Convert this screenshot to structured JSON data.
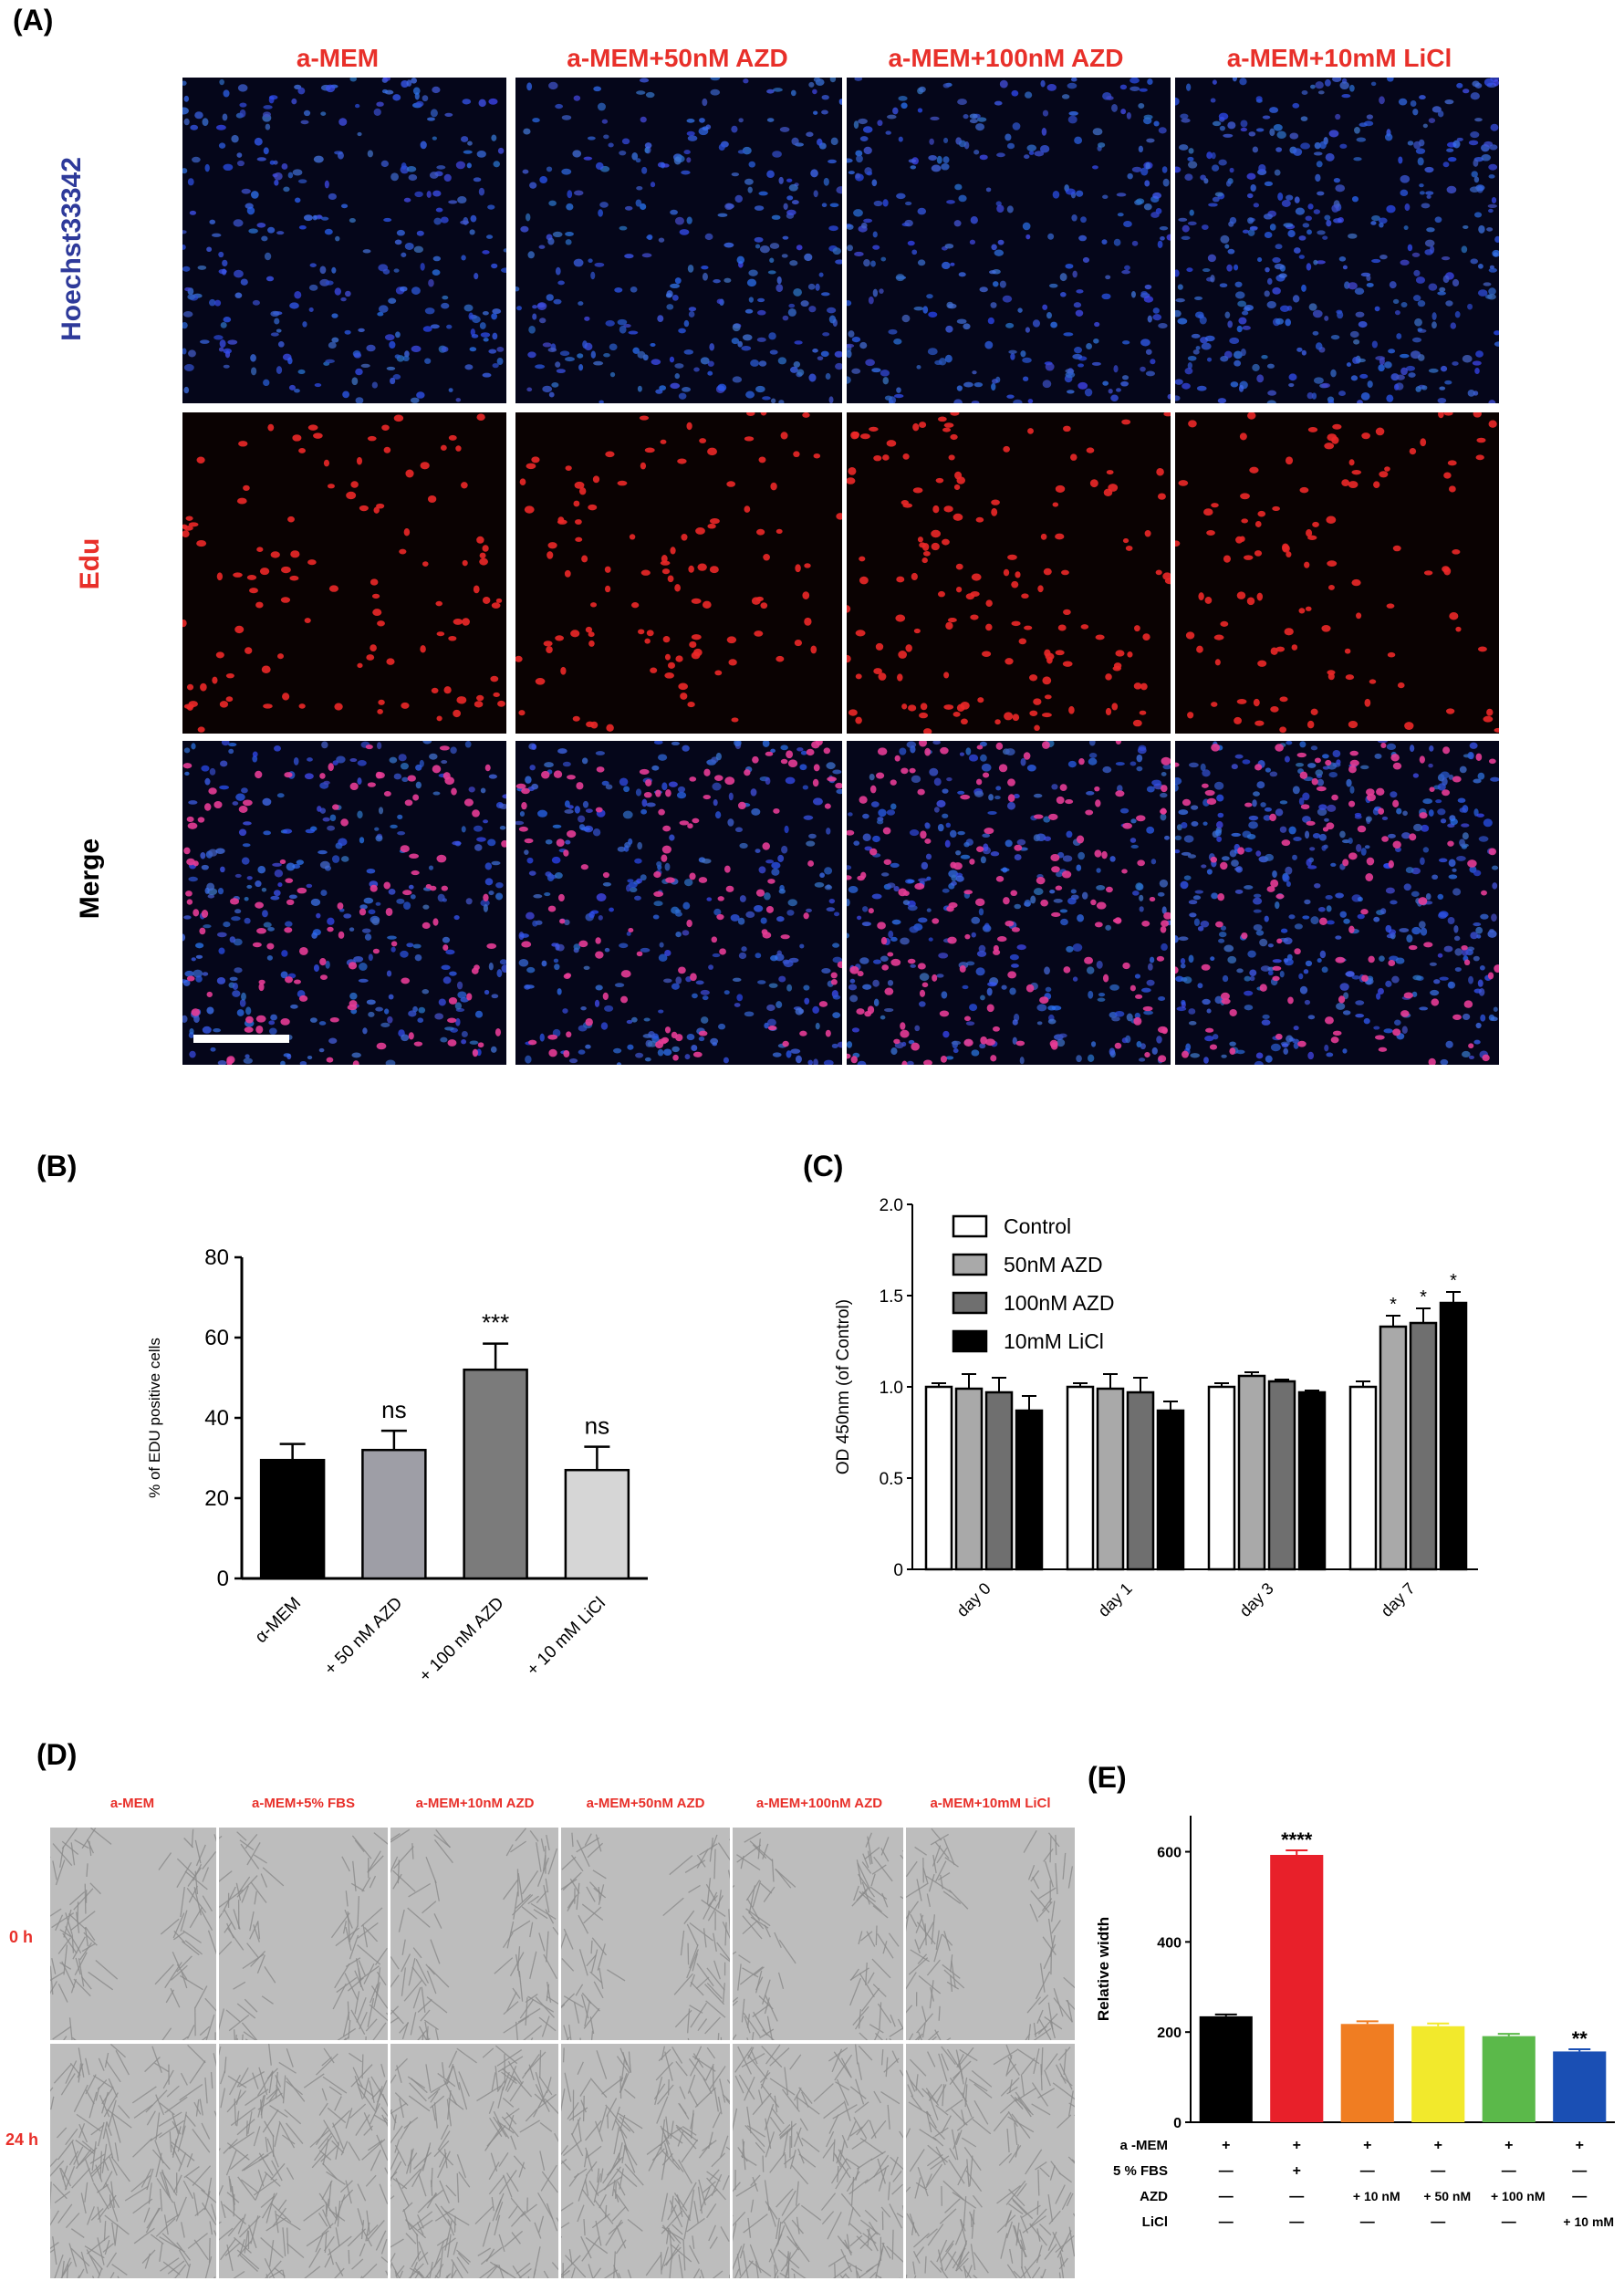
{
  "panel_letters": {
    "A": "(A)",
    "B": "(B)",
    "C": "(C)",
    "D": "(D)",
    "E": "(E)"
  },
  "panel_A": {
    "columns": [
      "a-MEM",
      "a-MEM+50nM AZD",
      "a-MEM+100nM AZD",
      "a-MEM+10mM LiCl"
    ],
    "rows": [
      {
        "label": "Hoechst33342",
        "color": "#2e3a9a"
      },
      {
        "label": "Edu",
        "color": "#e8302a"
      },
      {
        "label": "Merge",
        "color": "#000000"
      }
    ]
  },
  "panel_D": {
    "columns": [
      "a-MEM",
      "a-MEM+5% FBS",
      "a-MEM+10nM AZD",
      "a-MEM+50nM AZD",
      "a-MEM+100nM AZD",
      "a-MEM+10mM LiCl"
    ],
    "rows": [
      "0 h",
      "24 h"
    ]
  },
  "chart_data": [
    {
      "panel": "B",
      "type": "bar",
      "categories": [
        "α-MEM",
        "+ 50 nM AZD",
        "+ 100 nM AZD",
        "+ 10 mM LiCl"
      ],
      "values": [
        29.5,
        32,
        52,
        27
      ],
      "errors": [
        4,
        4.8,
        6.5,
        5.8
      ],
      "annotations": [
        "",
        "ns",
        "***",
        "ns"
      ],
      "colors": [
        "#000000",
        "#9e9ea6",
        "#7b7b7b",
        "#d6d6d6"
      ],
      "ylabel": "% of EDU positive cells",
      "ylim": [
        0,
        80
      ],
      "yticks": [
        0,
        20,
        40,
        60,
        80
      ]
    },
    {
      "panel": "C",
      "type": "bar",
      "categories": [
        "day 0",
        "day 1",
        "day 3",
        "day 7"
      ],
      "series": [
        {
          "name": "Control",
          "values": [
            1.0,
            1.0,
            1.0,
            1.0
          ],
          "errors": [
            0.02,
            0.02,
            0.02,
            0.03
          ],
          "color": "#ffffff"
        },
        {
          "name": "50nM AZD",
          "values": [
            0.99,
            0.99,
            1.06,
            1.33
          ],
          "errors": [
            0.08,
            0.08,
            0.02,
            0.06
          ],
          "color": "#a9a9a9"
        },
        {
          "name": "100nM AZD",
          "values": [
            0.97,
            0.97,
            1.03,
            1.35
          ],
          "errors": [
            0.08,
            0.08,
            0.01,
            0.08
          ],
          "color": "#6f6f6f"
        },
        {
          "name": "10mM LiCl",
          "values": [
            0.87,
            0.87,
            0.97,
            1.46
          ],
          "errors": [
            0.08,
            0.05,
            0.01,
            0.06
          ],
          "color": "#000000"
        }
      ],
      "annotations_day7": [
        "",
        "*",
        "*",
        "*"
      ],
      "ylabel": "OD 450nm (of Control)",
      "ylim": [
        0,
        2.0
      ],
      "yticks": [
        "0",
        "0.5",
        "1.0",
        "1.5",
        "2.0"
      ],
      "legend": "top-left"
    },
    {
      "panel": "E",
      "type": "bar",
      "categories": [
        "a-MEM",
        "+5% FBS",
        "+10 nM AZD",
        "+50 nM AZD",
        "+100 nM AZD",
        "+10 mM LiCl"
      ],
      "values": [
        235,
        593,
        218,
        213,
        191,
        157
      ],
      "errors": [
        4,
        10,
        6,
        6,
        5,
        5
      ],
      "annotations": [
        "",
        "****",
        "",
        "",
        "",
        "**"
      ],
      "colors": [
        "#000000",
        "#e8202a",
        "#f07d22",
        "#f2e92c",
        "#5bb94a",
        "#1a4fb4"
      ],
      "ylabel": "Relative width",
      "ylim": [
        0,
        680
      ],
      "yticks": [
        0,
        200,
        400,
        600
      ],
      "table": [
        {
          "label": "a -MEM",
          "cells": [
            "+",
            "+",
            "+",
            "+",
            "+",
            "+"
          ]
        },
        {
          "label": "5 % FBS",
          "cells": [
            "—",
            "+",
            "—",
            "—",
            "—",
            "—"
          ]
        },
        {
          "label": "AZD",
          "cells": [
            "—",
            "—",
            "+ 10 nM",
            "+ 50 nM",
            "+ 100 nM",
            "—"
          ]
        },
        {
          "label": "LiCl",
          "cells": [
            "—",
            "—",
            "—",
            "—",
            "—",
            "+ 10 mM"
          ]
        }
      ]
    }
  ]
}
